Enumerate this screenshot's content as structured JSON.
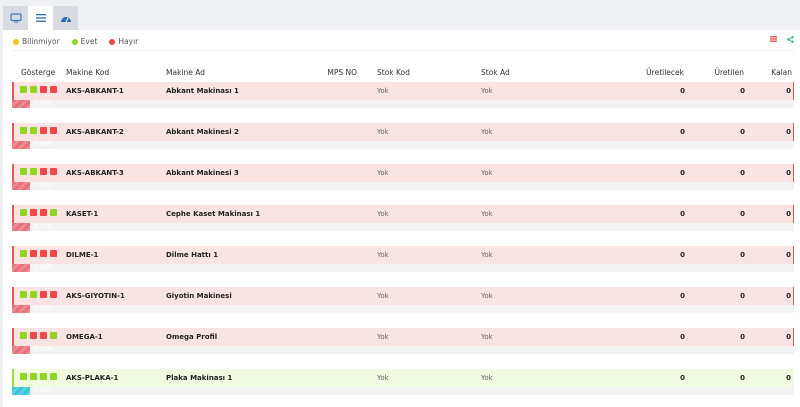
{
  "tabs": [
    {
      "icon": "monitor-icon"
    },
    {
      "icon": "list-icon",
      "active": true
    },
    {
      "icon": "dashboard-icon"
    }
  ],
  "legend": [
    {
      "label": "Bilinmiyor",
      "color": "#f0c419"
    },
    {
      "label": "Evet",
      "color": "#8fd620"
    },
    {
      "label": "Hayır",
      "color": "#f04848"
    }
  ],
  "toolbar": {
    "list_icon": "list-icon",
    "share_icon": "share-icon"
  },
  "columns": {
    "gosterge": "Gösterge",
    "makine_kod": "Makine Kod",
    "makine_ad": "Makine Ad",
    "mps_no": "MPS NO",
    "stok_kod": "Stok Kod",
    "stok_ad": "Stok Ad",
    "uretilecek": "Üretilecek",
    "uretilen": "Üretilen",
    "kalan": "Kalan"
  },
  "colors": {
    "evet": "#8fd620",
    "hayir": "#f04848"
  },
  "rows": [
    {
      "indicators": [
        "evet",
        "evet",
        "hayir",
        "hayir"
      ],
      "makine_kod": "AKS-ABKANT-1",
      "makine_ad": "Abkant Makinası 1",
      "mps_no": "",
      "stok_kod": "Yok",
      "stok_ad": "Yok",
      "uretilecek": "0",
      "uretilen": "0",
      "kalan": "0",
      "progress": "0.00%",
      "state": "pink"
    },
    {
      "indicators": [
        "evet",
        "evet",
        "hayir",
        "hayir"
      ],
      "makine_kod": "AKS-ABKANT-2",
      "makine_ad": "Abkant Makinesi 2",
      "mps_no": "",
      "stok_kod": "Yok",
      "stok_ad": "Yok",
      "uretilecek": "0",
      "uretilen": "0",
      "kalan": "0",
      "progress": "0.00%",
      "state": "pink"
    },
    {
      "indicators": [
        "evet",
        "evet",
        "hayir",
        "hayir"
      ],
      "makine_kod": "AKS-ABKANT-3",
      "makine_ad": "Abkant Makinesi 3",
      "mps_no": "",
      "stok_kod": "Yok",
      "stok_ad": "Yok",
      "uretilecek": "0",
      "uretilen": "0",
      "kalan": "0",
      "progress": "0.00%",
      "state": "pink"
    },
    {
      "indicators": [
        "evet",
        "hayir",
        "hayir",
        "evet"
      ],
      "makine_kod": "KASET-1",
      "makine_ad": "Cephe Kaset Makinası 1",
      "mps_no": "",
      "stok_kod": "Yok",
      "stok_ad": "Yok",
      "uretilecek": "0",
      "uretilen": "0",
      "kalan": "0",
      "progress": "0.00%",
      "state": "pink"
    },
    {
      "indicators": [
        "evet",
        "hayir",
        "hayir",
        "hayir"
      ],
      "makine_kod": "DILME-1",
      "makine_ad": "Dilme Hattı 1",
      "mps_no": "",
      "stok_kod": "Yok",
      "stok_ad": "Yok",
      "uretilecek": "0",
      "uretilen": "0",
      "kalan": "0",
      "progress": "0.00%",
      "state": "pink"
    },
    {
      "indicators": [
        "evet",
        "evet",
        "hayir",
        "hayir"
      ],
      "makine_kod": "AKS-GIYOTIN-1",
      "makine_ad": "Giyotin Makinesi",
      "mps_no": "",
      "stok_kod": "Yok",
      "stok_ad": "Yok",
      "uretilecek": "0",
      "uretilen": "0",
      "kalan": "0",
      "progress": "0.00%",
      "state": "pink"
    },
    {
      "indicators": [
        "evet",
        "hayir",
        "hayir",
        "evet"
      ],
      "makine_kod": "OMEGA-1",
      "makine_ad": "Omega Profil",
      "mps_no": "",
      "stok_kod": "Yok",
      "stok_ad": "Yok",
      "uretilecek": "0",
      "uretilen": "0",
      "kalan": "0",
      "progress": "0.00%",
      "state": "pink"
    },
    {
      "indicators": [
        "evet",
        "evet",
        "evet",
        "evet"
      ],
      "makine_kod": "AKS-PLAKA-1",
      "makine_ad": "Plaka Makinası 1",
      "mps_no": "",
      "stok_kod": "Yok",
      "stok_ad": "Yok",
      "uretilecek": "0",
      "uretilen": "0",
      "kalan": "0",
      "progress": "0.00%",
      "state": "green"
    }
  ]
}
